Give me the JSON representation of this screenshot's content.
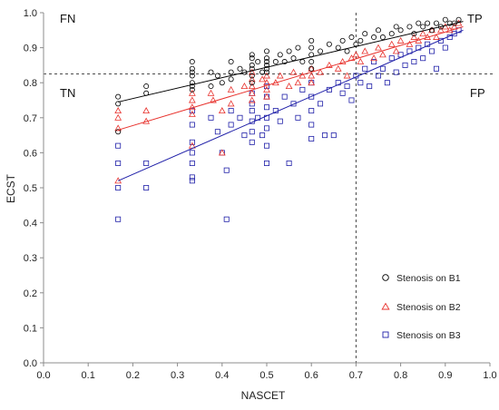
{
  "chart_data": {
    "type": "scatter",
    "xlabel": "NASCET",
    "ylabel": "ECST",
    "xlim": [
      0.0,
      1.0
    ],
    "ylim": [
      0.0,
      1.0
    ],
    "x_ticks": [
      "0.0",
      "0.1",
      "0.2",
      "0.3",
      "0.4",
      "0.5",
      "0.6",
      "0.7",
      "0.8",
      "0.9",
      "1.0"
    ],
    "y_ticks": [
      "0.0",
      "0.1",
      "0.2",
      "0.3",
      "0.4",
      "0.5",
      "0.6",
      "0.7",
      "0.8",
      "0.9",
      "1.0"
    ],
    "grid": false,
    "legend_position": "bottom-right",
    "threshold_lines": {
      "x": 0.7,
      "y": 0.825
    },
    "quadrant_labels": {
      "top_left": "FN",
      "top_right": "TP",
      "bottom_left": "TN",
      "bottom_right": "FP"
    },
    "series": [
      {
        "name": "Stenosis on B1",
        "color": "#000000",
        "marker": "circle",
        "trend": [
          [
            0.167,
            0.745
          ],
          [
            0.94,
            0.975
          ]
        ],
        "points": [
          [
            0.167,
            0.76
          ],
          [
            0.167,
            0.74
          ],
          [
            0.167,
            0.66
          ],
          [
            0.23,
            0.79
          ],
          [
            0.23,
            0.77
          ],
          [
            0.333,
            0.86
          ],
          [
            0.333,
            0.84
          ],
          [
            0.333,
            0.83
          ],
          [
            0.333,
            0.82
          ],
          [
            0.333,
            0.8
          ],
          [
            0.333,
            0.79
          ],
          [
            0.333,
            0.78
          ],
          [
            0.375,
            0.83
          ],
          [
            0.375,
            0.79
          ],
          [
            0.39,
            0.82
          ],
          [
            0.4,
            0.8
          ],
          [
            0.42,
            0.86
          ],
          [
            0.42,
            0.83
          ],
          [
            0.42,
            0.81
          ],
          [
            0.44,
            0.84
          ],
          [
            0.45,
            0.83
          ],
          [
            0.467,
            0.88
          ],
          [
            0.467,
            0.87
          ],
          [
            0.467,
            0.85
          ],
          [
            0.467,
            0.84
          ],
          [
            0.467,
            0.82
          ],
          [
            0.467,
            0.8
          ],
          [
            0.48,
            0.86
          ],
          [
            0.49,
            0.83
          ],
          [
            0.5,
            0.89
          ],
          [
            0.5,
            0.87
          ],
          [
            0.5,
            0.86
          ],
          [
            0.5,
            0.85
          ],
          [
            0.5,
            0.84
          ],
          [
            0.5,
            0.83
          ],
          [
            0.52,
            0.86
          ],
          [
            0.53,
            0.88
          ],
          [
            0.54,
            0.86
          ],
          [
            0.55,
            0.89
          ],
          [
            0.56,
            0.87
          ],
          [
            0.57,
            0.9
          ],
          [
            0.58,
            0.86
          ],
          [
            0.6,
            0.92
          ],
          [
            0.6,
            0.9
          ],
          [
            0.6,
            0.88
          ],
          [
            0.6,
            0.86
          ],
          [
            0.6,
            0.84
          ],
          [
            0.62,
            0.89
          ],
          [
            0.64,
            0.91
          ],
          [
            0.66,
            0.9
          ],
          [
            0.67,
            0.92
          ],
          [
            0.68,
            0.89
          ],
          [
            0.69,
            0.93
          ],
          [
            0.7,
            0.91
          ],
          [
            0.71,
            0.92
          ],
          [
            0.72,
            0.94
          ],
          [
            0.74,
            0.93
          ],
          [
            0.75,
            0.95
          ],
          [
            0.76,
            0.93
          ],
          [
            0.78,
            0.94
          ],
          [
            0.79,
            0.96
          ],
          [
            0.8,
            0.95
          ],
          [
            0.82,
            0.96
          ],
          [
            0.83,
            0.94
          ],
          [
            0.84,
            0.97
          ],
          [
            0.85,
            0.96
          ],
          [
            0.86,
            0.97
          ],
          [
            0.87,
            0.95
          ],
          [
            0.88,
            0.97
          ],
          [
            0.89,
            0.96
          ],
          [
            0.9,
            0.98
          ],
          [
            0.91,
            0.97
          ],
          [
            0.92,
            0.97
          ],
          [
            0.93,
            0.98
          ]
        ]
      },
      {
        "name": "Stenosis on B2",
        "color": "#e8322d",
        "marker": "triangle",
        "trend": [
          [
            0.167,
            0.665
          ],
          [
            0.94,
            0.96
          ]
        ],
        "points": [
          [
            0.167,
            0.72
          ],
          [
            0.167,
            0.7
          ],
          [
            0.167,
            0.67
          ],
          [
            0.167,
            0.52
          ],
          [
            0.23,
            0.72
          ],
          [
            0.23,
            0.69
          ],
          [
            0.333,
            0.77
          ],
          [
            0.333,
            0.75
          ],
          [
            0.333,
            0.73
          ],
          [
            0.333,
            0.71
          ],
          [
            0.333,
            0.62
          ],
          [
            0.375,
            0.77
          ],
          [
            0.38,
            0.75
          ],
          [
            0.4,
            0.72
          ],
          [
            0.4,
            0.6
          ],
          [
            0.42,
            0.78
          ],
          [
            0.42,
            0.74
          ],
          [
            0.45,
            0.79
          ],
          [
            0.467,
            0.83
          ],
          [
            0.467,
            0.81
          ],
          [
            0.467,
            0.79
          ],
          [
            0.467,
            0.77
          ],
          [
            0.467,
            0.75
          ],
          [
            0.49,
            0.81
          ],
          [
            0.5,
            0.82
          ],
          [
            0.5,
            0.8
          ],
          [
            0.5,
            0.78
          ],
          [
            0.5,
            0.76
          ],
          [
            0.52,
            0.8
          ],
          [
            0.53,
            0.82
          ],
          [
            0.55,
            0.79
          ],
          [
            0.56,
            0.83
          ],
          [
            0.57,
            0.8
          ],
          [
            0.58,
            0.82
          ],
          [
            0.6,
            0.84
          ],
          [
            0.6,
            0.82
          ],
          [
            0.6,
            0.8
          ],
          [
            0.62,
            0.83
          ],
          [
            0.64,
            0.85
          ],
          [
            0.66,
            0.84
          ],
          [
            0.67,
            0.86
          ],
          [
            0.68,
            0.82
          ],
          [
            0.69,
            0.87
          ],
          [
            0.7,
            0.88
          ],
          [
            0.71,
            0.86
          ],
          [
            0.72,
            0.89
          ],
          [
            0.74,
            0.87
          ],
          [
            0.75,
            0.9
          ],
          [
            0.76,
            0.88
          ],
          [
            0.78,
            0.91
          ],
          [
            0.79,
            0.89
          ],
          [
            0.8,
            0.92
          ],
          [
            0.82,
            0.91
          ],
          [
            0.83,
            0.93
          ],
          [
            0.84,
            0.92
          ],
          [
            0.85,
            0.94
          ],
          [
            0.86,
            0.93
          ],
          [
            0.87,
            0.95
          ],
          [
            0.88,
            0.93
          ],
          [
            0.89,
            0.95
          ],
          [
            0.9,
            0.96
          ],
          [
            0.91,
            0.95
          ],
          [
            0.92,
            0.96
          ],
          [
            0.93,
            0.97
          ]
        ]
      },
      {
        "name": "Stenosis on B3",
        "color": "#1f1fa8",
        "marker": "square",
        "trend": [
          [
            0.167,
            0.52
          ],
          [
            0.94,
            0.95
          ]
        ],
        "points": [
          [
            0.167,
            0.62
          ],
          [
            0.167,
            0.57
          ],
          [
            0.167,
            0.5
          ],
          [
            0.167,
            0.41
          ],
          [
            0.23,
            0.57
          ],
          [
            0.23,
            0.5
          ],
          [
            0.333,
            0.72
          ],
          [
            0.333,
            0.68
          ],
          [
            0.333,
            0.63
          ],
          [
            0.333,
            0.6
          ],
          [
            0.333,
            0.57
          ],
          [
            0.333,
            0.53
          ],
          [
            0.333,
            0.52
          ],
          [
            0.375,
            0.7
          ],
          [
            0.39,
            0.66
          ],
          [
            0.4,
            0.6
          ],
          [
            0.41,
            0.55
          ],
          [
            0.41,
            0.41
          ],
          [
            0.42,
            0.72
          ],
          [
            0.42,
            0.68
          ],
          [
            0.44,
            0.7
          ],
          [
            0.45,
            0.65
          ],
          [
            0.467,
            0.77
          ],
          [
            0.467,
            0.74
          ],
          [
            0.467,
            0.72
          ],
          [
            0.467,
            0.69
          ],
          [
            0.467,
            0.66
          ],
          [
            0.467,
            0.63
          ],
          [
            0.48,
            0.7
          ],
          [
            0.49,
            0.65
          ],
          [
            0.5,
            0.79
          ],
          [
            0.5,
            0.76
          ],
          [
            0.5,
            0.73
          ],
          [
            0.5,
            0.7
          ],
          [
            0.5,
            0.67
          ],
          [
            0.5,
            0.62
          ],
          [
            0.5,
            0.57
          ],
          [
            0.52,
            0.72
          ],
          [
            0.53,
            0.69
          ],
          [
            0.54,
            0.76
          ],
          [
            0.55,
            0.57
          ],
          [
            0.56,
            0.74
          ],
          [
            0.57,
            0.7
          ],
          [
            0.58,
            0.78
          ],
          [
            0.6,
            0.8
          ],
          [
            0.6,
            0.76
          ],
          [
            0.6,
            0.72
          ],
          [
            0.6,
            0.68
          ],
          [
            0.6,
            0.64
          ],
          [
            0.62,
            0.74
          ],
          [
            0.63,
            0.65
          ],
          [
            0.64,
            0.78
          ],
          [
            0.65,
            0.65
          ],
          [
            0.66,
            0.8
          ],
          [
            0.67,
            0.77
          ],
          [
            0.68,
            0.79
          ],
          [
            0.69,
            0.75
          ],
          [
            0.7,
            0.82
          ],
          [
            0.71,
            0.8
          ],
          [
            0.72,
            0.84
          ],
          [
            0.73,
            0.79
          ],
          [
            0.74,
            0.86
          ],
          [
            0.75,
            0.82
          ],
          [
            0.76,
            0.84
          ],
          [
            0.77,
            0.8
          ],
          [
            0.78,
            0.87
          ],
          [
            0.79,
            0.83
          ],
          [
            0.8,
            0.88
          ],
          [
            0.81,
            0.85
          ],
          [
            0.82,
            0.89
          ],
          [
            0.83,
            0.86
          ],
          [
            0.84,
            0.9
          ],
          [
            0.85,
            0.87
          ],
          [
            0.86,
            0.91
          ],
          [
            0.87,
            0.89
          ],
          [
            0.88,
            0.84
          ],
          [
            0.89,
            0.92
          ],
          [
            0.9,
            0.9
          ],
          [
            0.91,
            0.93
          ],
          [
            0.92,
            0.94
          ],
          [
            0.93,
            0.95
          ]
        ]
      }
    ]
  }
}
